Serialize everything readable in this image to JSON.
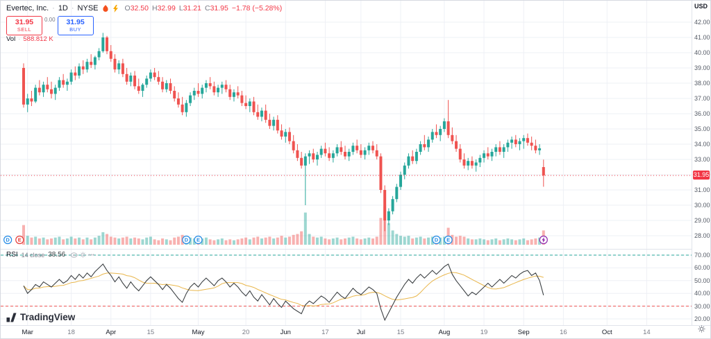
{
  "header": {
    "symbol": "Evertec, Inc.",
    "sep1": "·",
    "interval": "1D",
    "sep2": "·",
    "exchange": "NYSE",
    "ohlc": {
      "o_label": "O",
      "o": "32.50",
      "h_label": "H",
      "h": "32.99",
      "l_label": "L",
      "l": "31.21",
      "c_label": "C",
      "c": "31.95",
      "change": "−1.78 (−5.28%)"
    }
  },
  "trade": {
    "sell_price": "31.95",
    "sell_label": "SELL",
    "spread": "0.00",
    "buy_price": "31.95",
    "buy_label": "BUY"
  },
  "volume_legend": {
    "name": "Vol",
    "sep": "·",
    "value": "588.812 K"
  },
  "rsi_legend": {
    "name": "RSI",
    "params": "14 close",
    "value": "38.56"
  },
  "logo": {
    "text": "TradingView"
  },
  "price_scale": {
    "currency": "USD",
    "last_price": "31.95",
    "labels": [
      "42.00",
      "41.00",
      "40.00",
      "39.00",
      "38.00",
      "37.00",
      "36.00",
      "35.00",
      "34.00",
      "33.00",
      "32.00",
      "31.00",
      "30.00",
      "29.00",
      "28.00"
    ]
  },
  "rsi_scale": {
    "labels": [
      "70.00",
      "60.00",
      "50.00",
      "40.00",
      "30.00",
      "20.00"
    ]
  },
  "time_scale": {
    "ticks": [
      {
        "label": "Mar",
        "day": 1,
        "major": true
      },
      {
        "label": "18",
        "day": 12,
        "major": false
      },
      {
        "label": "Apr",
        "day": 22,
        "major": true
      },
      {
        "label": "15",
        "day": 32,
        "major": false
      },
      {
        "label": "May",
        "day": 44,
        "major": true
      },
      {
        "label": "20",
        "day": 56,
        "major": false
      },
      {
        "label": "Jun",
        "day": 66,
        "major": true
      },
      {
        "label": "17",
        "day": 76,
        "major": false
      },
      {
        "label": "Jul",
        "day": 85,
        "major": true
      },
      {
        "label": "15",
        "day": 95,
        "major": false
      },
      {
        "label": "Aug",
        "day": 106,
        "major": true
      },
      {
        "label": "19",
        "day": 116,
        "major": false
      },
      {
        "label": "Sep",
        "day": 126,
        "major": true
      },
      {
        "label": "16",
        "day": 136,
        "major": false
      },
      {
        "label": "Oct",
        "day": 147,
        "major": true
      },
      {
        "label": "14",
        "day": 157,
        "major": false
      }
    ]
  },
  "colors": {
    "up": "#26a69a",
    "down": "#ef5350",
    "sell": "#f23645",
    "buy": "#2962ff",
    "grid": "#eef0f6",
    "axis_text": "#555b66",
    "muted": "#787b86",
    "dark": "#131722",
    "rsi_line": "#3c4043",
    "rsi_ma": "#e9b64b",
    "band_up": "#26a69a",
    "band_dn": "#ef5350",
    "marker_blue": "#1e88e5",
    "marker_red": "#e53935",
    "marker_purple": "#8e24aa"
  },
  "chart_data": {
    "type": "candlestick",
    "panes": [
      "price+volume",
      "rsi"
    ],
    "price_range": [
      28,
      42
    ],
    "rsi_range": [
      20,
      70
    ],
    "rsi_bands": [
      70,
      30
    ],
    "last_close": 31.95,
    "candles": [
      [
        39.0,
        39.3,
        36.4,
        36.6,
        2.2
      ],
      [
        36.6,
        37.3,
        36.1,
        37.0,
        1.0
      ],
      [
        37.0,
        37.5,
        36.5,
        36.8,
        0.8
      ],
      [
        36.8,
        37.9,
        36.7,
        37.7,
        0.9
      ],
      [
        37.7,
        38.2,
        37.2,
        37.4,
        0.7
      ],
      [
        37.4,
        38.1,
        37.1,
        37.9,
        0.8
      ],
      [
        37.9,
        38.4,
        37.4,
        37.6,
        0.6
      ],
      [
        37.6,
        38.1,
        37.0,
        37.3,
        0.7
      ],
      [
        37.3,
        37.9,
        36.9,
        37.7,
        0.8
      ],
      [
        37.7,
        38.4,
        37.5,
        38.2,
        0.9
      ],
      [
        38.2,
        38.6,
        37.7,
        37.9,
        0.6
      ],
      [
        37.9,
        38.3,
        37.5,
        38.1,
        0.7
      ],
      [
        38.1,
        38.9,
        37.9,
        38.7,
        0.9
      ],
      [
        38.7,
        39.1,
        38.2,
        38.5,
        0.7
      ],
      [
        38.5,
        39.3,
        38.3,
        39.1,
        0.8
      ],
      [
        39.1,
        39.5,
        38.6,
        38.9,
        0.6
      ],
      [
        38.9,
        39.6,
        38.7,
        39.4,
        0.8
      ],
      [
        39.4,
        39.9,
        39.0,
        39.2,
        0.6
      ],
      [
        39.2,
        39.8,
        38.9,
        39.7,
        0.8
      ],
      [
        39.7,
        40.3,
        39.5,
        40.1,
        1.0
      ],
      [
        40.1,
        41.3,
        40.0,
        41.0,
        1.4
      ],
      [
        41.0,
        41.1,
        39.9,
        40.1,
        1.2
      ],
      [
        40.1,
        40.5,
        39.4,
        39.6,
        0.9
      ],
      [
        39.6,
        39.9,
        38.7,
        38.9,
        0.8
      ],
      [
        38.9,
        39.5,
        38.6,
        39.3,
        0.7
      ],
      [
        39.3,
        39.6,
        38.4,
        38.6,
        0.8
      ],
      [
        38.6,
        39.0,
        37.9,
        38.1,
        0.9
      ],
      [
        38.1,
        38.7,
        37.8,
        38.5,
        0.7
      ],
      [
        38.5,
        38.8,
        37.6,
        37.8,
        0.8
      ],
      [
        37.8,
        38.3,
        37.3,
        37.5,
        0.7
      ],
      [
        37.5,
        38.0,
        37.1,
        37.9,
        0.6
      ],
      [
        37.9,
        38.5,
        37.7,
        38.3,
        0.8
      ],
      [
        38.3,
        38.9,
        38.1,
        38.7,
        0.9
      ],
      [
        38.7,
        39.0,
        38.2,
        38.4,
        0.6
      ],
      [
        38.4,
        38.8,
        37.9,
        38.1,
        0.5
      ],
      [
        38.1,
        38.4,
        37.4,
        37.6,
        0.7
      ],
      [
        37.6,
        38.2,
        37.4,
        38.0,
        0.6
      ],
      [
        38.0,
        38.3,
        37.3,
        37.5,
        0.5
      ],
      [
        37.5,
        37.8,
        36.8,
        37.0,
        0.8
      ],
      [
        37.0,
        37.4,
        36.4,
        36.6,
        0.9
      ],
      [
        36.6,
        37.1,
        35.9,
        36.1,
        1.1
      ],
      [
        36.1,
        36.9,
        35.8,
        36.7,
        0.9
      ],
      [
        36.7,
        37.4,
        36.5,
        37.2,
        0.8
      ],
      [
        37.2,
        37.7,
        36.9,
        37.5,
        0.7
      ],
      [
        37.5,
        38.0,
        37.1,
        37.3,
        0.6
      ],
      [
        37.3,
        37.9,
        37.0,
        37.7,
        0.7
      ],
      [
        37.7,
        38.2,
        37.4,
        38.0,
        0.8
      ],
      [
        38.0,
        38.4,
        37.6,
        37.8,
        0.6
      ],
      [
        37.8,
        38.1,
        37.2,
        37.4,
        0.5
      ],
      [
        37.4,
        37.9,
        37.1,
        37.7,
        0.6
      ],
      [
        37.7,
        38.1,
        37.3,
        37.9,
        0.7
      ],
      [
        37.9,
        38.2,
        37.4,
        37.6,
        0.5
      ],
      [
        37.6,
        37.9,
        36.9,
        37.1,
        0.6
      ],
      [
        37.1,
        37.6,
        36.8,
        37.4,
        0.5
      ],
      [
        37.4,
        37.8,
        37.0,
        37.2,
        0.6
      ],
      [
        37.2,
        37.5,
        36.5,
        36.7,
        0.7
      ],
      [
        36.7,
        37.2,
        36.3,
        36.5,
        0.8
      ],
      [
        36.5,
        37.0,
        36.1,
        36.8,
        0.6
      ],
      [
        36.8,
        37.1,
        35.9,
        36.1,
        0.8
      ],
      [
        36.1,
        36.6,
        35.6,
        35.8,
        0.9
      ],
      [
        35.8,
        36.4,
        35.5,
        36.2,
        0.7
      ],
      [
        36.2,
        36.6,
        35.4,
        35.6,
        0.8
      ],
      [
        35.6,
        36.0,
        35.0,
        35.2,
        0.9
      ],
      [
        35.2,
        35.8,
        34.9,
        35.6,
        0.7
      ],
      [
        35.6,
        35.9,
        34.7,
        34.9,
        0.8
      ],
      [
        34.9,
        35.3,
        34.3,
        34.5,
        1.0
      ],
      [
        34.5,
        35.0,
        34.1,
        34.8,
        0.8
      ],
      [
        34.8,
        35.1,
        34.0,
        34.2,
        0.9
      ],
      [
        34.2,
        34.6,
        33.4,
        33.6,
        1.1
      ],
      [
        33.6,
        34.0,
        32.9,
        33.1,
        1.2
      ],
      [
        33.1,
        33.5,
        32.4,
        32.6,
        1.5
      ],
      [
        32.6,
        33.4,
        30.0,
        33.2,
        3.6
      ],
      [
        33.2,
        33.6,
        32.7,
        33.4,
        1.2
      ],
      [
        33.4,
        33.7,
        32.8,
        33.0,
        0.9
      ],
      [
        33.0,
        33.5,
        32.6,
        33.3,
        0.8
      ],
      [
        33.3,
        33.9,
        33.1,
        33.7,
        0.9
      ],
      [
        33.7,
        34.1,
        33.2,
        33.4,
        0.7
      ],
      [
        33.4,
        33.8,
        32.9,
        33.1,
        0.6
      ],
      [
        33.1,
        33.6,
        32.8,
        33.4,
        0.7
      ],
      [
        33.4,
        34.0,
        33.2,
        33.8,
        0.8
      ],
      [
        33.8,
        34.2,
        33.3,
        33.5,
        0.6
      ],
      [
        33.5,
        33.9,
        33.0,
        33.2,
        0.7
      ],
      [
        33.2,
        33.7,
        32.9,
        33.5,
        0.8
      ],
      [
        33.5,
        34.1,
        33.3,
        33.9,
        0.9
      ],
      [
        33.9,
        34.3,
        33.4,
        33.6,
        0.7
      ],
      [
        33.6,
        34.0,
        33.1,
        33.3,
        0.6
      ],
      [
        33.3,
        33.8,
        33.0,
        33.6,
        0.7
      ],
      [
        33.6,
        34.1,
        33.3,
        33.9,
        0.8
      ],
      [
        33.9,
        34.2,
        33.4,
        33.6,
        0.7
      ],
      [
        33.6,
        34.0,
        33.0,
        33.2,
        0.9
      ],
      [
        33.2,
        33.4,
        30.8,
        31.0,
        3.0
      ],
      [
        31.0,
        31.3,
        28.3,
        29.0,
        4.3
      ],
      [
        29.0,
        29.8,
        28.7,
        29.6,
        2.4
      ],
      [
        29.6,
        30.6,
        29.4,
        30.4,
        1.6
      ],
      [
        30.4,
        31.4,
        30.2,
        31.2,
        1.2
      ],
      [
        31.2,
        32.2,
        31.0,
        32.0,
        1.0
      ],
      [
        32.0,
        32.8,
        31.7,
        32.6,
        0.9
      ],
      [
        32.6,
        33.4,
        32.4,
        33.2,
        1.0
      ],
      [
        33.2,
        33.6,
        32.7,
        32.9,
        0.7
      ],
      [
        32.9,
        33.7,
        32.7,
        33.5,
        0.8
      ],
      [
        33.5,
        34.2,
        33.3,
        34.0,
        0.9
      ],
      [
        34.0,
        34.6,
        33.6,
        33.8,
        0.7
      ],
      [
        33.8,
        34.5,
        33.5,
        34.3,
        0.8
      ],
      [
        34.3,
        35.0,
        34.1,
        34.8,
        0.9
      ],
      [
        34.8,
        35.3,
        34.4,
        34.6,
        0.7
      ],
      [
        34.6,
        35.2,
        34.2,
        35.0,
        0.8
      ],
      [
        35.0,
        35.7,
        34.8,
        35.5,
        0.9
      ],
      [
        35.5,
        36.9,
        34.4,
        34.6,
        1.9
      ],
      [
        34.6,
        35.1,
        34.0,
        34.2,
        1.1
      ],
      [
        34.2,
        34.6,
        33.5,
        33.7,
        0.9
      ],
      [
        33.7,
        34.0,
        32.8,
        33.0,
        1.0
      ],
      [
        33.0,
        33.4,
        32.4,
        32.6,
        0.9
      ],
      [
        32.6,
        33.1,
        32.3,
        32.9,
        0.7
      ],
      [
        32.9,
        33.2,
        32.4,
        32.6,
        0.6
      ],
      [
        32.6,
        33.0,
        32.2,
        32.8,
        0.6
      ],
      [
        32.8,
        33.3,
        32.5,
        33.1,
        0.7
      ],
      [
        33.1,
        33.6,
        32.8,
        33.4,
        0.6
      ],
      [
        33.4,
        33.8,
        33.0,
        33.2,
        0.5
      ],
      [
        33.2,
        33.7,
        32.9,
        33.5,
        0.6
      ],
      [
        33.5,
        34.0,
        33.2,
        33.8,
        0.7
      ],
      [
        33.8,
        34.2,
        33.3,
        33.5,
        0.5
      ],
      [
        33.5,
        34.0,
        33.1,
        33.8,
        0.6
      ],
      [
        33.8,
        34.3,
        33.5,
        34.1,
        0.7
      ],
      [
        34.1,
        34.5,
        33.7,
        34.3,
        0.6
      ],
      [
        34.3,
        34.6,
        33.8,
        34.0,
        0.5
      ],
      [
        34.0,
        34.4,
        33.6,
        34.2,
        0.6
      ],
      [
        34.2,
        34.6,
        33.7,
        34.4,
        0.7
      ],
      [
        34.4,
        34.7,
        33.9,
        34.1,
        0.5
      ],
      [
        34.1,
        34.5,
        33.6,
        33.9,
        0.6
      ],
      [
        33.9,
        34.3,
        33.4,
        33.6,
        0.7
      ],
      [
        33.6,
        34.0,
        33.3,
        33.73,
        0.8
      ],
      [
        32.5,
        32.99,
        31.21,
        31.95,
        1.6
      ]
    ],
    "rsi": [
      46,
      40,
      43,
      47,
      45,
      49,
      47,
      45,
      48,
      51,
      48,
      50,
      54,
      51,
      55,
      52,
      56,
      53,
      57,
      60,
      63,
      58,
      54,
      49,
      53,
      48,
      44,
      49,
      45,
      42,
      46,
      50,
      53,
      50,
      47,
      43,
      47,
      44,
      40,
      36,
      33,
      40,
      45,
      48,
      45,
      49,
      52,
      49,
      46,
      50,
      52,
      49,
      45,
      48,
      45,
      41,
      38,
      42,
      37,
      34,
      39,
      35,
      31,
      36,
      32,
      29,
      34,
      31,
      28,
      26,
      24,
      31,
      34,
      32,
      35,
      38,
      36,
      33,
      37,
      41,
      38,
      36,
      40,
      44,
      41,
      39,
      42,
      45,
      43,
      40,
      28,
      19,
      25,
      31,
      37,
      42,
      47,
      51,
      48,
      52,
      55,
      52,
      55,
      58,
      55,
      58,
      61,
      63,
      55,
      50,
      46,
      42,
      38,
      41,
      39,
      42,
      45,
      48,
      45,
      48,
      51,
      48,
      51,
      54,
      52,
      55,
      57,
      58,
      54,
      56,
      50,
      38.56
    ],
    "markers": [
      {
        "day": -4,
        "label": "D",
        "color": "marker_blue"
      },
      {
        "day": -1,
        "label": "E",
        "color": "marker_red"
      },
      {
        "day": 41,
        "label": "D",
        "color": "marker_blue"
      },
      {
        "day": 44,
        "label": "E",
        "color": "marker_blue"
      },
      {
        "day": 104,
        "label": "D",
        "color": "marker_blue"
      },
      {
        "day": 107,
        "label": "E",
        "color": "marker_blue"
      },
      {
        "day": 131,
        "label": "bolt",
        "color": "marker_purple"
      }
    ]
  }
}
